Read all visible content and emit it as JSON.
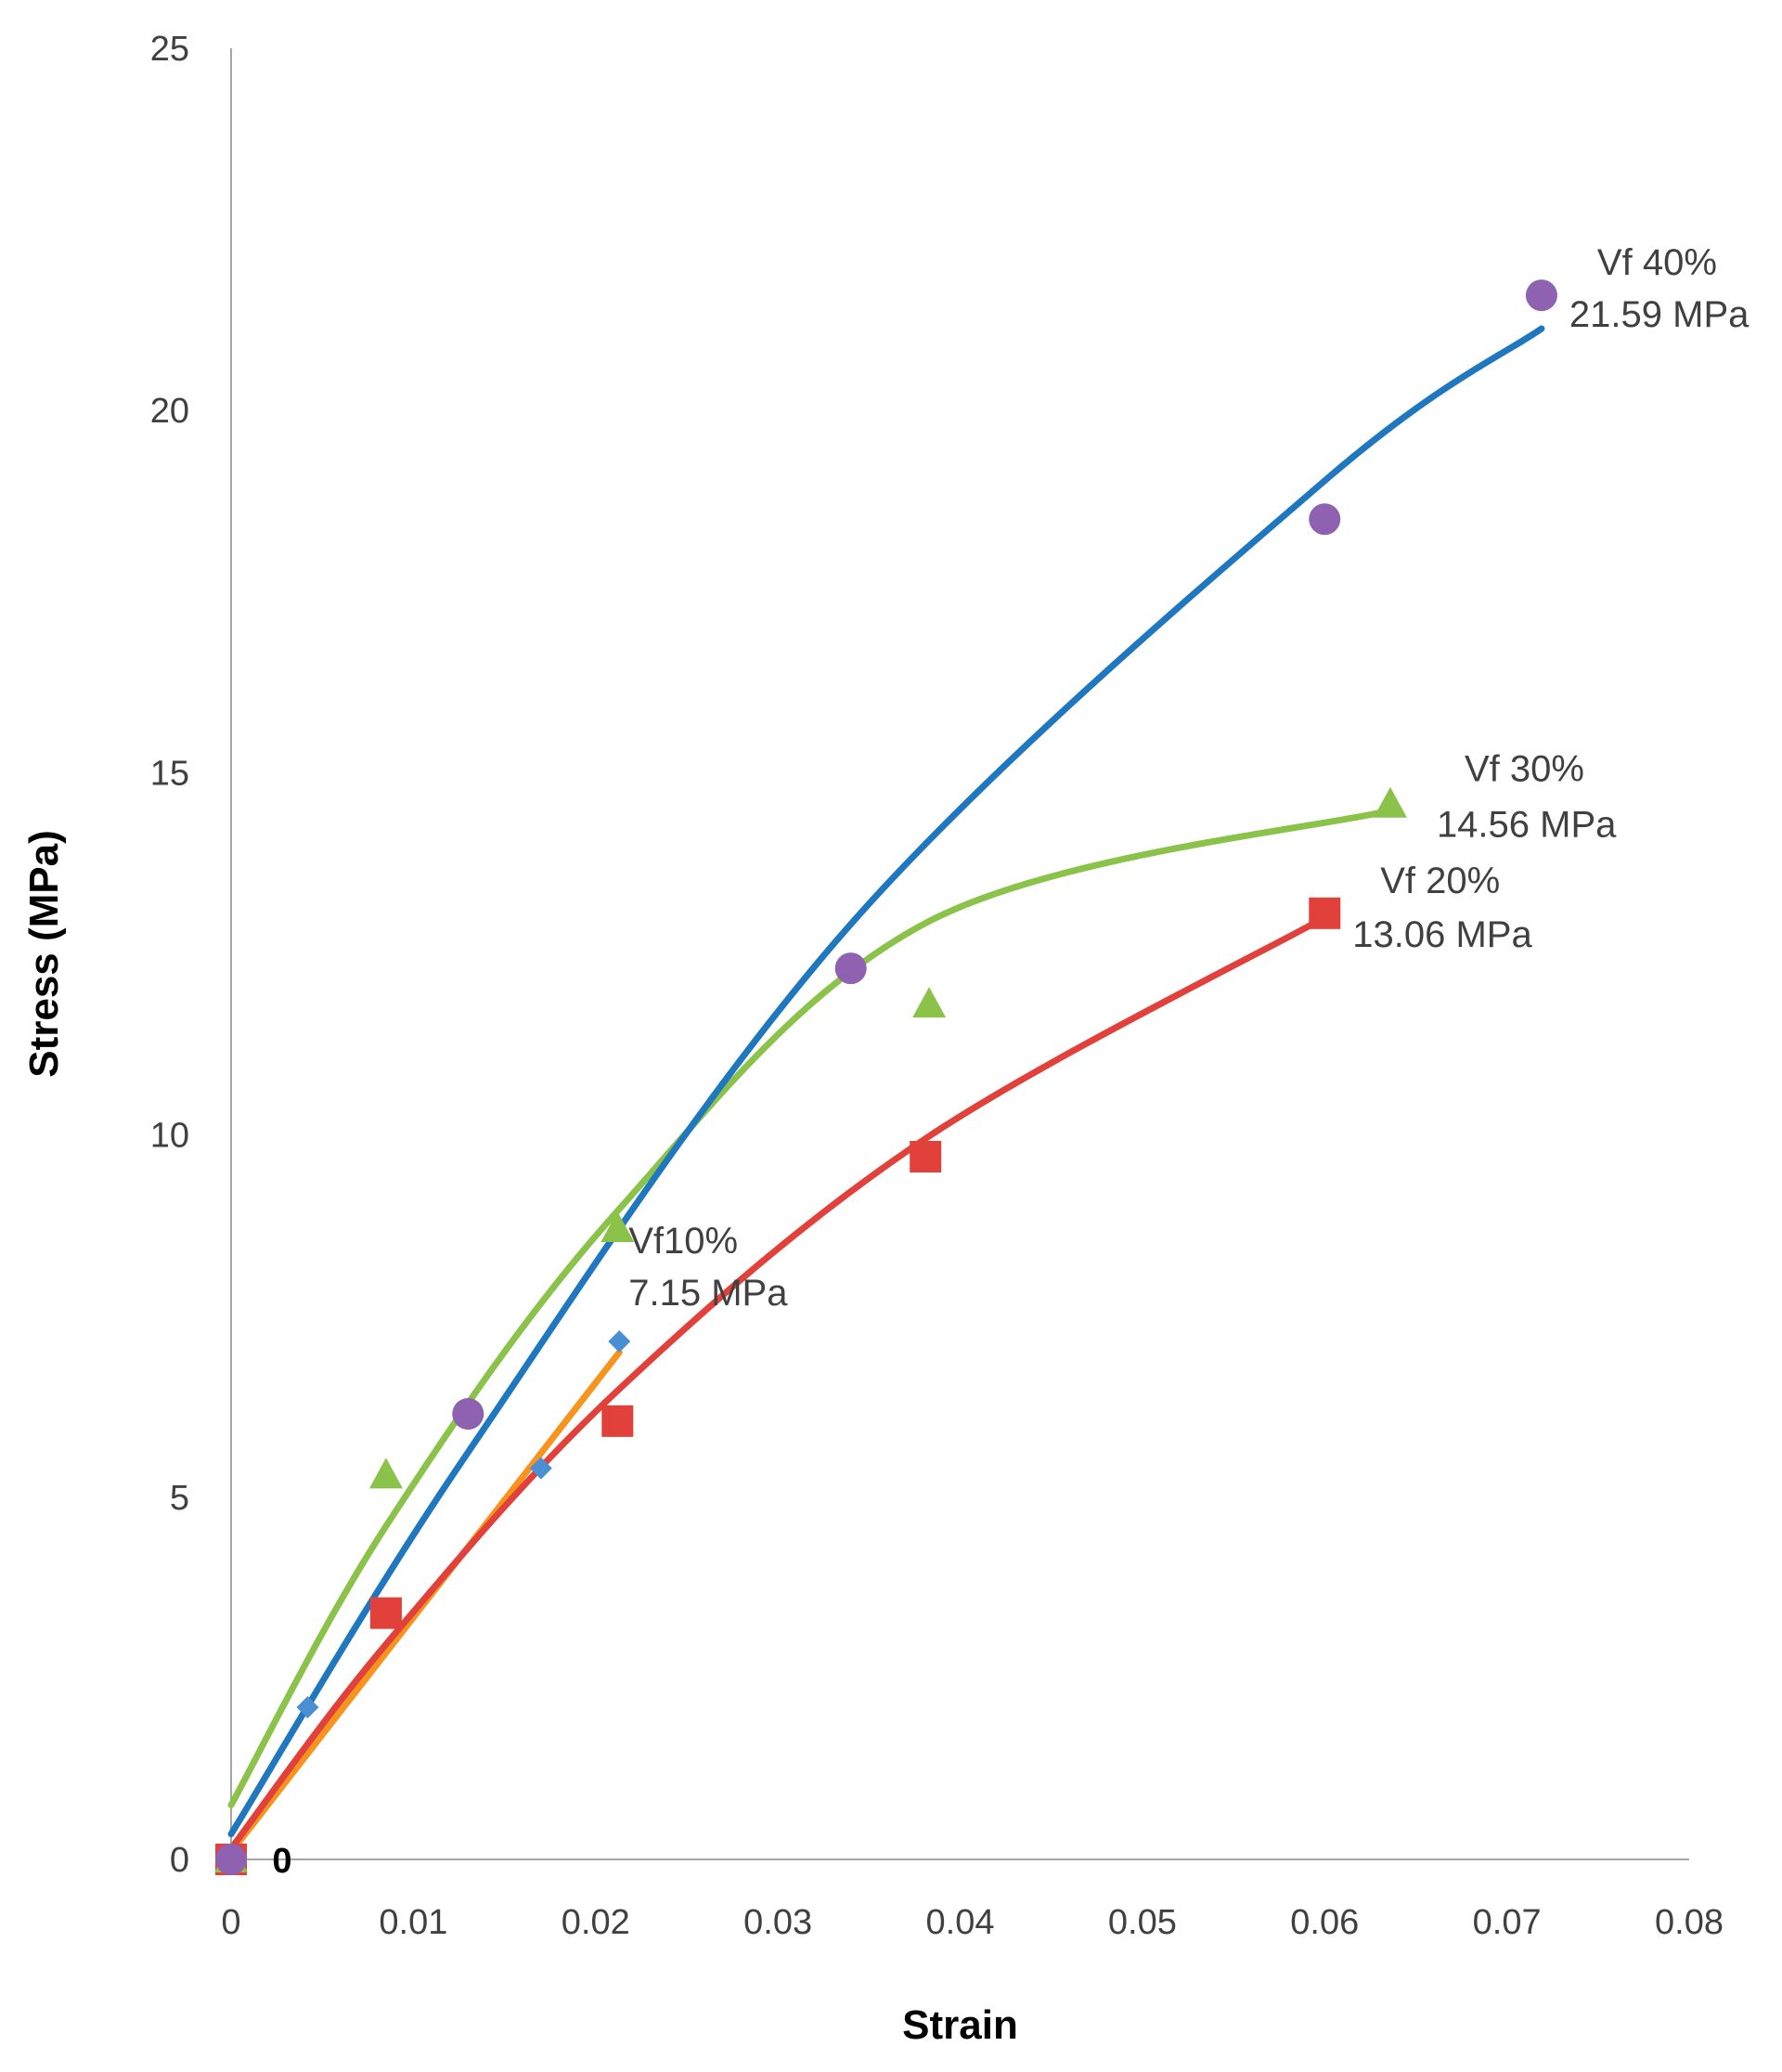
{
  "chart_data": {
    "type": "scatter",
    "title": "",
    "xlabel": "Strain",
    "ylabel": "Stress (MPa)",
    "xlim": [
      0,
      0.08
    ],
    "ylim": [
      0,
      25
    ],
    "x_ticks": [
      0,
      0.01,
      0.02,
      0.03,
      0.04,
      0.05,
      0.06,
      0.07,
      0.08
    ],
    "x_tick_labels": [
      "0",
      "0.01",
      "0.02",
      "0.03",
      "0.04",
      "0.05",
      "0.06",
      "0.07",
      "0.08"
    ],
    "y_ticks": [
      0,
      5,
      10,
      15,
      20,
      25
    ],
    "y_tick_labels": [
      "0",
      "5",
      "10",
      "15",
      "20",
      "25"
    ],
    "grid": false,
    "zero_label": "0",
    "series": [
      {
        "name": "Vf10%",
        "marker": "diamond",
        "color": "#4a8fd4",
        "trend_color": "#f7941d",
        "points": [
          [
            0,
            0
          ],
          [
            0.0042,
            2.1
          ],
          [
            0.017,
            5.4
          ],
          [
            0.0213,
            7.15
          ]
        ],
        "trend": [
          [
            0,
            0.1
          ],
          [
            0.0213,
            7.0
          ]
        ],
        "annotation_lines": [
          "Vf10%",
          "7.15 MPa"
        ]
      },
      {
        "name": "Vf 20%",
        "marker": "square",
        "color": "#e2403a",
        "trend_color": "#e2403a",
        "points": [
          [
            0,
            0
          ],
          [
            0.0085,
            3.4
          ],
          [
            0.0212,
            6.05
          ],
          [
            0.0381,
            9.7
          ],
          [
            0.06,
            13.06
          ]
        ],
        "trend": [
          [
            0,
            0.15
          ],
          [
            0.0085,
            2.97
          ],
          [
            0.0212,
            6.47
          ],
          [
            0.0381,
            9.95
          ],
          [
            0.06,
            13.0
          ]
        ],
        "annotation_lines": [
          "Vf 20%",
          "13.06 MPa"
        ]
      },
      {
        "name": "Vf 30%",
        "marker": "triangle",
        "color": "#8bc34a",
        "trend_color": "#8bc34a",
        "points": [
          [
            0,
            0
          ],
          [
            0.0085,
            5.3
          ],
          [
            0.0212,
            8.7
          ],
          [
            0.0383,
            11.8
          ],
          [
            0.0636,
            14.56
          ]
        ],
        "trend": [
          [
            0,
            0.75
          ],
          [
            0.0085,
            4.6
          ],
          [
            0.0212,
            8.95
          ],
          [
            0.0383,
            12.95
          ],
          [
            0.0636,
            14.48
          ]
        ],
        "annotation_lines": [
          "Vf 30%",
          "14.56 MPa"
        ]
      },
      {
        "name": "Vf 40%",
        "marker": "circle",
        "color": "#8e62b0",
        "trend_color": "#1f77c0",
        "points": [
          [
            0,
            0
          ],
          [
            0.013,
            6.15
          ],
          [
            0.034,
            12.3
          ],
          [
            0.06,
            18.5
          ],
          [
            0.0719,
            21.59
          ]
        ],
        "trend": [
          [
            0,
            0.35
          ],
          [
            0.013,
            5.62
          ],
          [
            0.034,
            12.91
          ],
          [
            0.06,
            19.03
          ],
          [
            0.0719,
            21.13
          ]
        ],
        "annotation_lines": [
          "Vf 40%",
          "21.59 MPa"
        ]
      }
    ]
  }
}
